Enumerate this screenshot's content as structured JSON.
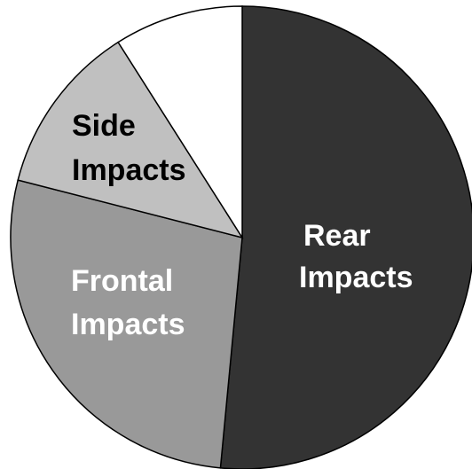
{
  "chart_data": {
    "type": "pie",
    "title": "",
    "legend": "none",
    "slices": [
      {
        "key": "rear",
        "label_lines": [
          "Rear",
          "Impacts"
        ],
        "value": 51.5,
        "color": "#333333",
        "label_color": "#ffffff"
      },
      {
        "key": "frontal",
        "label_lines": [
          "Frontal",
          "Impacts"
        ],
        "value": 27.5,
        "color": "#999999",
        "label_color": "#ffffff"
      },
      {
        "key": "side",
        "label_lines": [
          "Side",
          "Impacts"
        ],
        "value": 12.0,
        "color": "#c0c0c0",
        "label_color": "#000000"
      },
      {
        "key": "other",
        "label_lines": [],
        "value": 9.0,
        "color": "#ffffff",
        "label_color": "#000000"
      }
    ]
  }
}
